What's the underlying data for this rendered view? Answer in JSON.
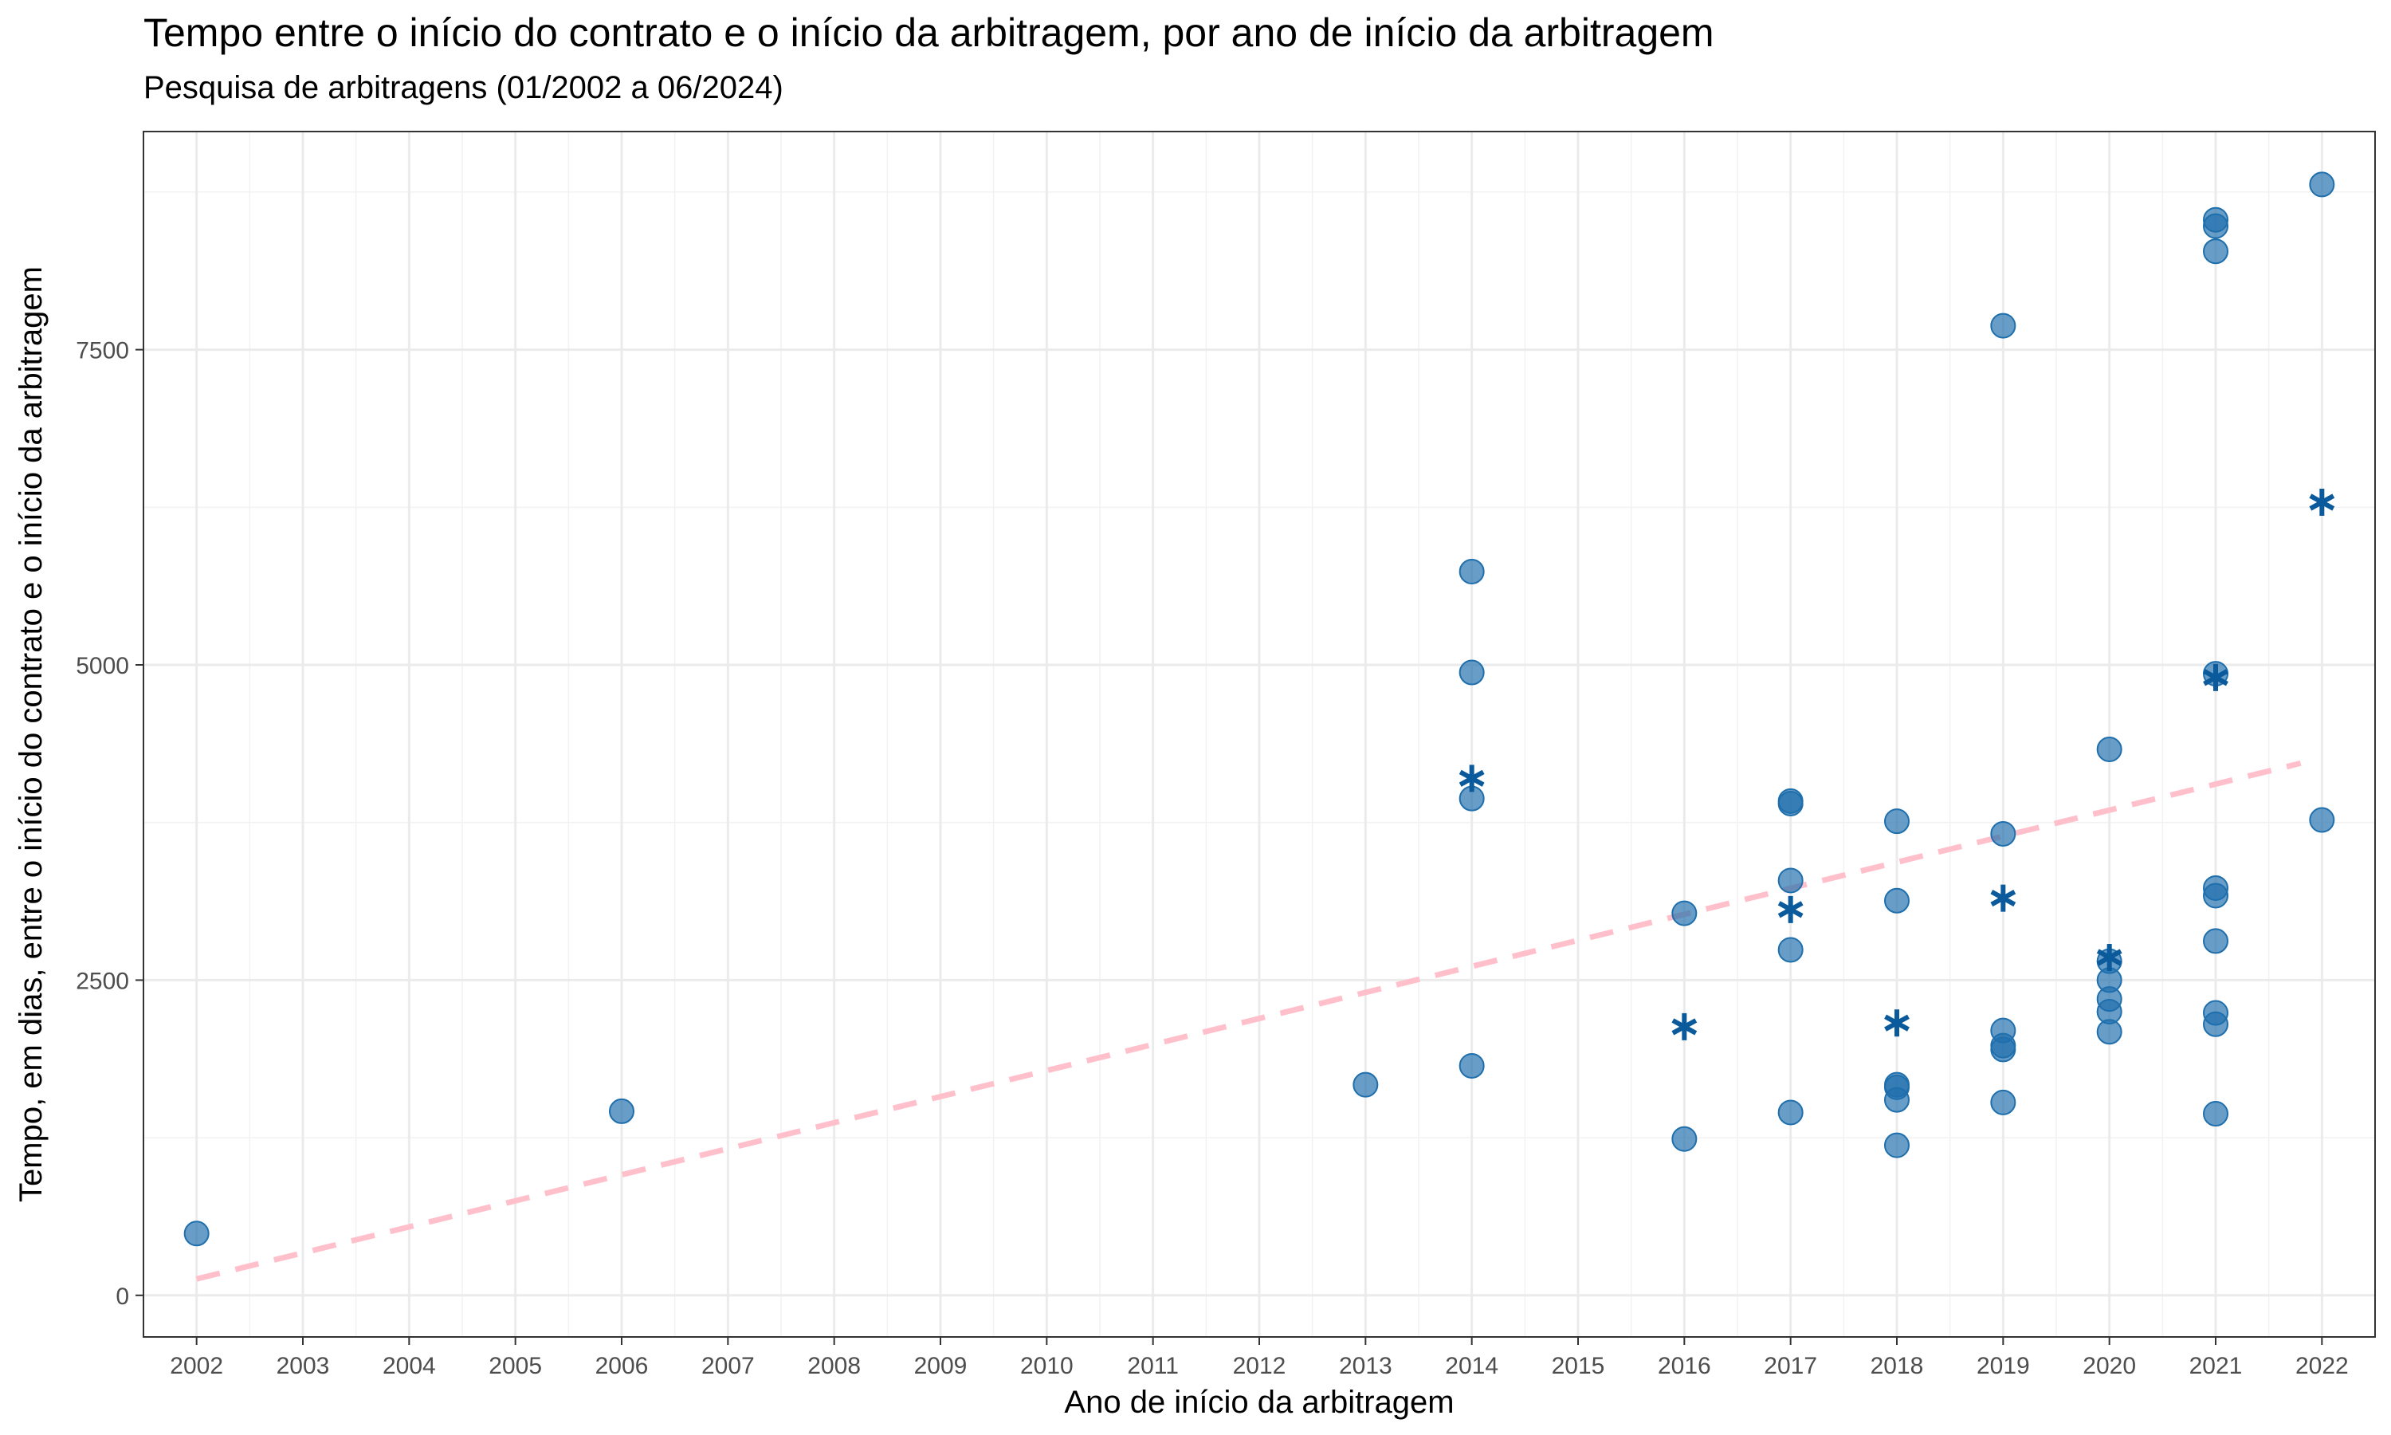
{
  "chart_data": {
    "type": "scatter",
    "title": "Tempo entre o início do contrato e o início da arbitragem, por ano de início da arbitragem",
    "subtitle": "Pesquisa de arbitragens (01/2002 a 06/2024)",
    "xlabel": "Ano de início da arbitragem",
    "ylabel": "Tempo, em dias, entre o início do contrato e o início da arbitragem",
    "x_ticks": [
      "2002",
      "2003",
      "2004",
      "2005",
      "2006",
      "2007",
      "2008",
      "2009",
      "2010",
      "2011",
      "2012",
      "2013",
      "2014",
      "2015",
      "2016",
      "2017",
      "2018",
      "2019",
      "2020",
      "2021",
      "2022"
    ],
    "y_ticks": [
      0,
      2500,
      5000,
      7500
    ],
    "xlim": [
      2001.5,
      2022.5
    ],
    "ylim": [
      -330,
      9230
    ],
    "grid": true,
    "series": [
      {
        "marker": "circle",
        "color": "#1f6fad",
        "points": [
          {
            "x": 2002,
            "y": 490
          },
          {
            "x": 2006,
            "y": 1460
          },
          {
            "x": 2013,
            "y": 1670
          },
          {
            "x": 2014,
            "y": 5740
          },
          {
            "x": 2014,
            "y": 4940
          },
          {
            "x": 2014,
            "y": 3940
          },
          {
            "x": 2014,
            "y": 1820
          },
          {
            "x": 2016,
            "y": 3030
          },
          {
            "x": 2016,
            "y": 1240
          },
          {
            "x": 2017,
            "y": 3920
          },
          {
            "x": 2017,
            "y": 3900
          },
          {
            "x": 2017,
            "y": 3290
          },
          {
            "x": 2017,
            "y": 2740
          },
          {
            "x": 2017,
            "y": 1450
          },
          {
            "x": 2018,
            "y": 3760
          },
          {
            "x": 2018,
            "y": 3130
          },
          {
            "x": 2018,
            "y": 1670
          },
          {
            "x": 2018,
            "y": 1650
          },
          {
            "x": 2018,
            "y": 1550
          },
          {
            "x": 2018,
            "y": 1190
          },
          {
            "x": 2019,
            "y": 7690
          },
          {
            "x": 2019,
            "y": 3660
          },
          {
            "x": 2019,
            "y": 2100
          },
          {
            "x": 2019,
            "y": 1980
          },
          {
            "x": 2019,
            "y": 1950
          },
          {
            "x": 2019,
            "y": 1530
          },
          {
            "x": 2020,
            "y": 4330
          },
          {
            "x": 2020,
            "y": 2650
          },
          {
            "x": 2020,
            "y": 2500
          },
          {
            "x": 2020,
            "y": 2350
          },
          {
            "x": 2020,
            "y": 2250
          },
          {
            "x": 2020,
            "y": 2090
          },
          {
            "x": 2021,
            "y": 8530
          },
          {
            "x": 2021,
            "y": 8480
          },
          {
            "x": 2021,
            "y": 8280
          },
          {
            "x": 2021,
            "y": 4930
          },
          {
            "x": 2021,
            "y": 3230
          },
          {
            "x": 2021,
            "y": 3170
          },
          {
            "x": 2021,
            "y": 2810
          },
          {
            "x": 2021,
            "y": 2240
          },
          {
            "x": 2021,
            "y": 2150
          },
          {
            "x": 2021,
            "y": 1440
          },
          {
            "x": 2022,
            "y": 8810
          },
          {
            "x": 2022,
            "y": 3770
          }
        ]
      },
      {
        "marker": "asterisk",
        "color": "#0a5a9c",
        "points": [
          {
            "x": 2014,
            "y": 4100
          },
          {
            "x": 2016,
            "y": 2130
          },
          {
            "x": 2017,
            "y": 3060
          },
          {
            "x": 2018,
            "y": 2160
          },
          {
            "x": 2019,
            "y": 3150
          },
          {
            "x": 2020,
            "y": 2680
          },
          {
            "x": 2021,
            "y": 4900
          },
          {
            "x": 2022,
            "y": 6290
          }
        ]
      }
    ],
    "trend_line": {
      "style": "dashed",
      "color": "#ffc0cb",
      "x": [
        2002,
        2021.8
      ],
      "y": [
        130,
        4220
      ]
    }
  }
}
